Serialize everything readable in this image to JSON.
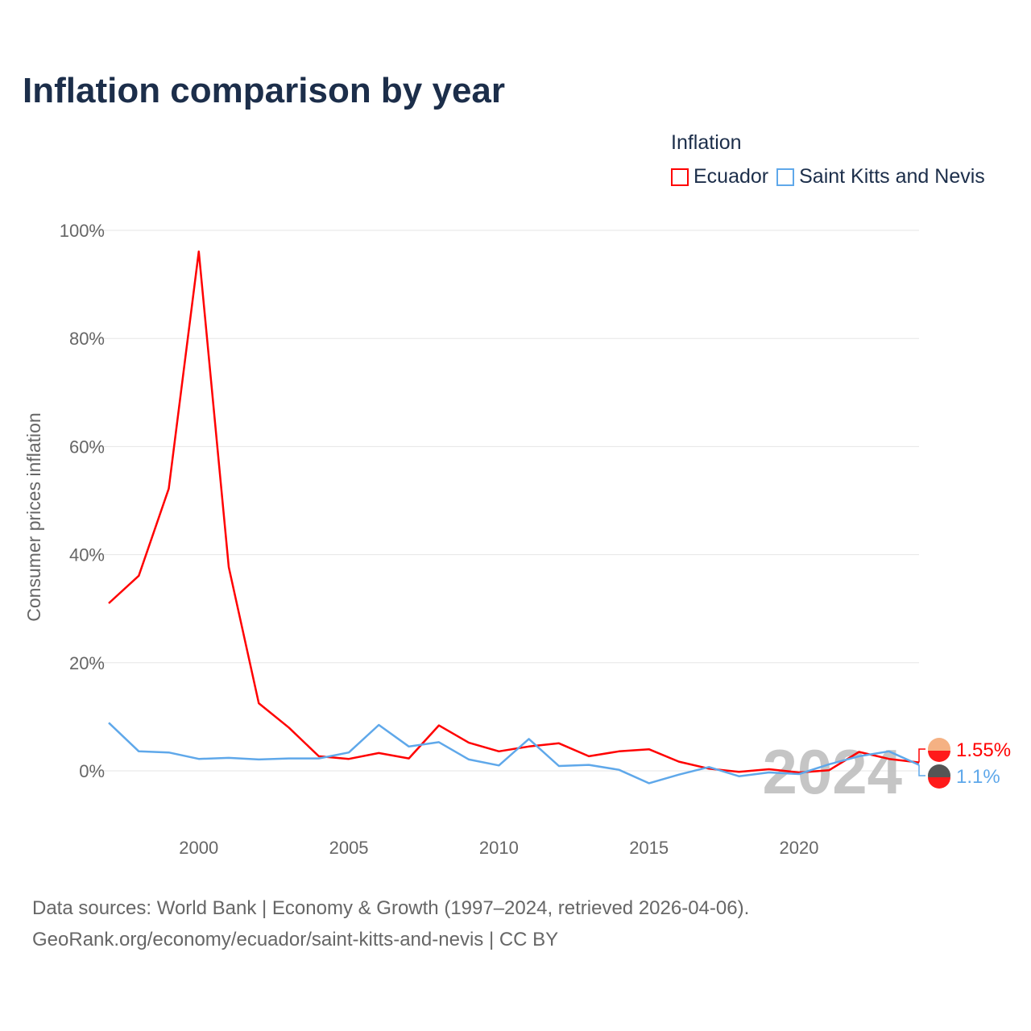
{
  "title": "Inflation comparison by year",
  "legend": {
    "title": "Inflation",
    "items": [
      {
        "name": "Ecuador",
        "color": "#ff0000"
      },
      {
        "name": "Saint Kitts and Nevis",
        "color": "#5fa8ea"
      }
    ]
  },
  "source": {
    "line1": "Data sources: World Bank | Economy & Growth (1997–2024, retrieved 2026-04-06).",
    "line2": "GeoRank.org/economy/ecuador/saint-kitts-and-nevis | CC BY"
  },
  "chart_data": {
    "type": "line",
    "title": "Inflation comparison by year",
    "xlabel": "",
    "ylabel": "Consumer prices inflation",
    "xlim": [
      1997,
      2024
    ],
    "ylim": [
      -10,
      100
    ],
    "yticks": [
      0,
      20,
      40,
      60,
      80,
      100
    ],
    "ytick_labels": [
      "0%",
      "20%",
      "40%",
      "60%",
      "80%",
      "100%"
    ],
    "xticks": [
      2000,
      2005,
      2010,
      2015,
      2020
    ],
    "xtick_labels": [
      "2000",
      "2005",
      "2010",
      "2015",
      "2020"
    ],
    "grid": true,
    "legend_position": "top-right",
    "year_watermark": "2024",
    "x": [
      1997,
      1998,
      1999,
      2000,
      2001,
      2002,
      2003,
      2004,
      2005,
      2006,
      2007,
      2008,
      2009,
      2010,
      2011,
      2012,
      2013,
      2014,
      2015,
      2016,
      2017,
      2018,
      2019,
      2020,
      2021,
      2022,
      2023,
      2024
    ],
    "series": [
      {
        "name": "Ecuador",
        "color": "#ff0000",
        "end_label": "1.55%",
        "values": [
          31.0,
          36.1,
          52.2,
          96.1,
          37.7,
          12.5,
          8.0,
          2.7,
          2.2,
          3.3,
          2.3,
          8.4,
          5.2,
          3.6,
          4.5,
          5.1,
          2.7,
          3.6,
          4.0,
          1.7,
          0.4,
          -0.2,
          0.3,
          -0.3,
          0.1,
          3.5,
          2.2,
          1.55
        ]
      },
      {
        "name": "Saint Kitts and Nevis",
        "color": "#5fa8ea",
        "end_label": "1.1%",
        "values": [
          8.9,
          3.6,
          3.4,
          2.2,
          2.4,
          2.1,
          2.3,
          2.3,
          3.4,
          8.5,
          4.5,
          5.3,
          2.1,
          1.0,
          5.9,
          0.9,
          1.1,
          0.2,
          -2.3,
          -0.7,
          0.7,
          -1.0,
          -0.3,
          -0.6,
          1.2,
          2.7,
          3.6,
          1.1
        ]
      }
    ]
  }
}
